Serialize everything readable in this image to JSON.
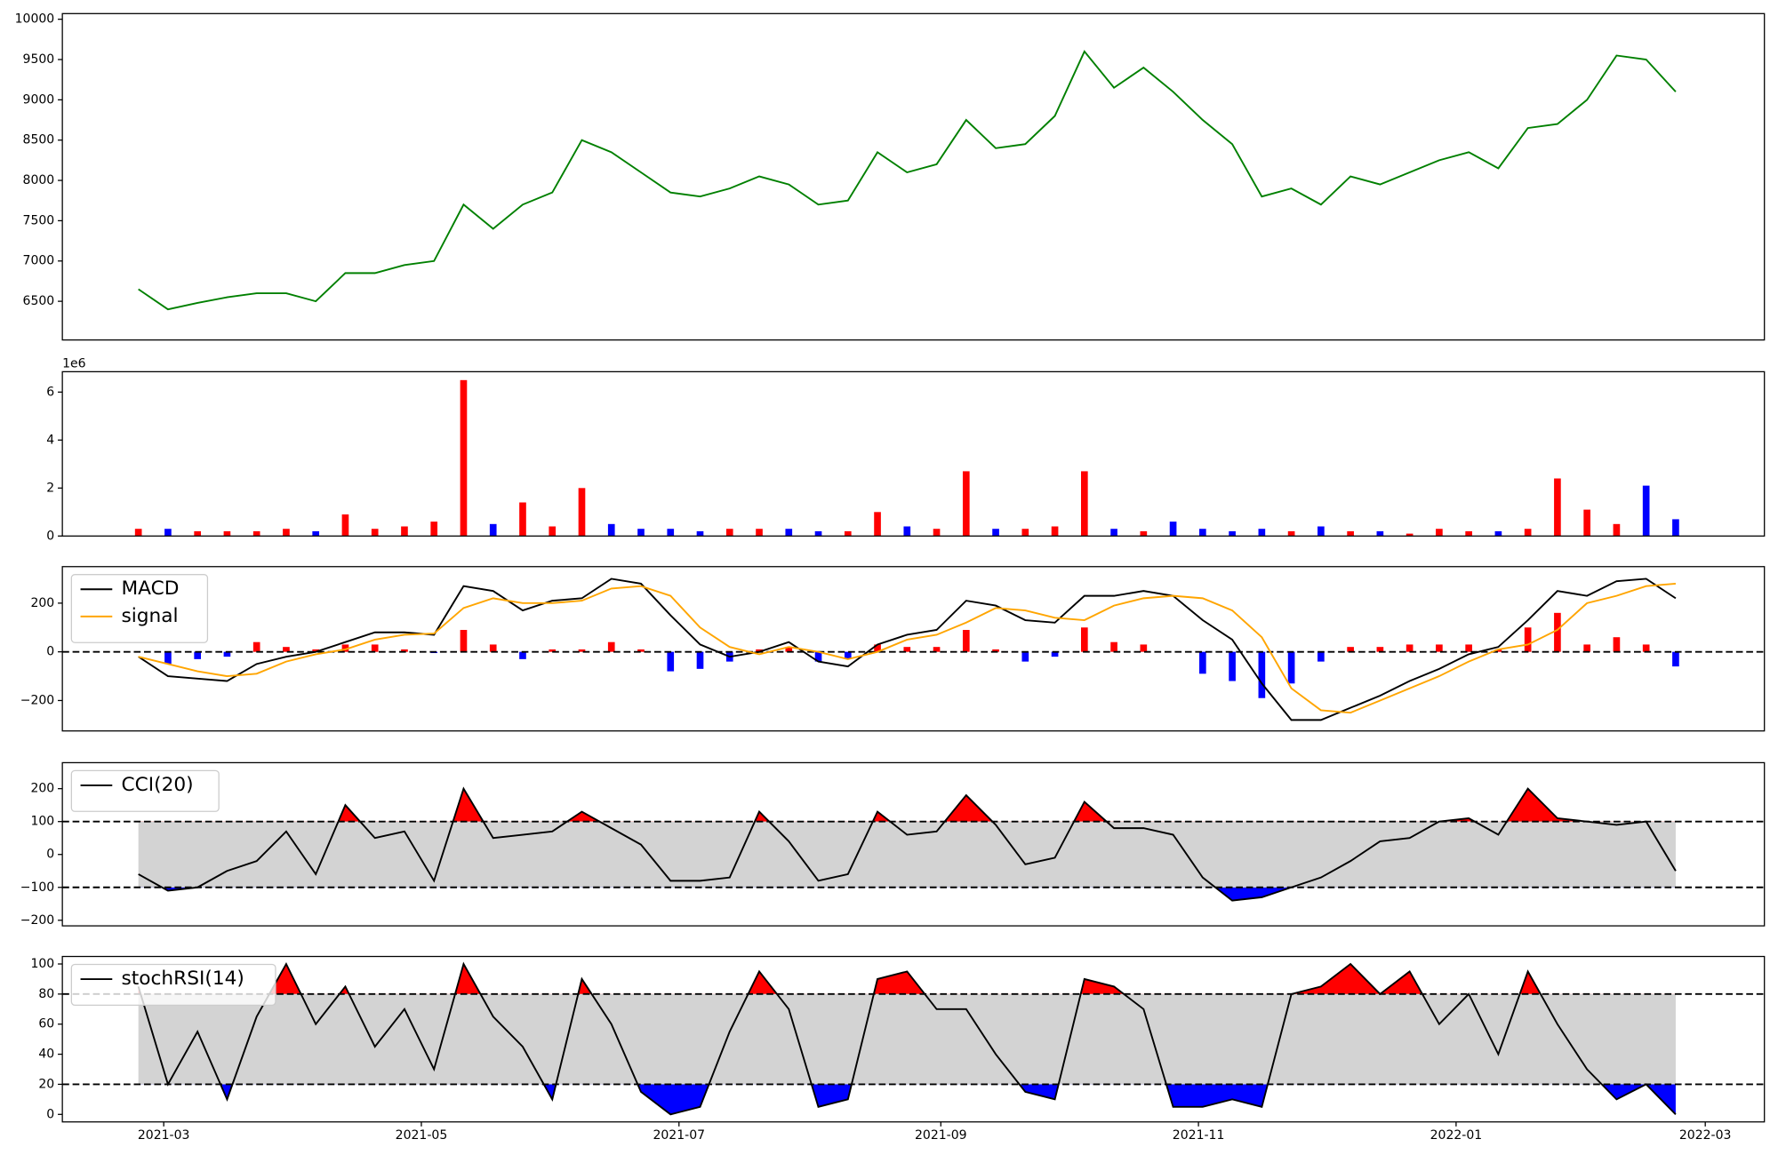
{
  "chart_data": [
    {
      "type": "line",
      "series": [
        {
          "color": "#008000",
          "values": [
            6650,
            6400,
            6480,
            6550,
            6600,
            6600,
            6500,
            6850,
            6850,
            6950,
            7000,
            7700,
            7400,
            7700,
            7850,
            8500,
            8350,
            8100,
            7850,
            7800,
            7900,
            8050,
            7950,
            7700,
            7750,
            8350,
            8100,
            8200,
            8750,
            8400,
            8450,
            8800,
            9600,
            9150,
            9400,
            9100,
            8750,
            8450,
            7800,
            7900,
            7700,
            8050,
            7950,
            8100,
            8250,
            8350,
            8150,
            8650,
            8700,
            9000,
            9550,
            9500,
            9100
          ]
        }
      ],
      "ylim": [
        6020,
        10070
      ],
      "yticks": [
        6500,
        7000,
        7500,
        8000,
        8500,
        9000,
        9500,
        10000
      ]
    },
    {
      "type": "bar",
      "y_offset_label": "1e6",
      "series": [
        {
          "up_color": "#ff0000",
          "down_color": "#0000ff",
          "values": [
            0.3,
            0.3,
            0.2,
            0.2,
            0.2,
            0.3,
            0.2,
            0.9,
            0.3,
            0.4,
            0.6,
            6.5,
            0.5,
            1.4,
            0.4,
            2.0,
            0.5,
            0.3,
            0.3,
            0.2,
            0.3,
            0.3,
            0.3,
            0.2,
            0.2,
            1.0,
            0.4,
            0.3,
            2.7,
            0.3,
            0.3,
            0.4,
            2.7,
            0.3,
            0.2,
            0.6,
            0.3,
            0.2,
            0.3,
            0.2,
            0.4,
            0.2,
            0.2,
            0.1,
            0.3,
            0.2,
            0.2,
            0.3,
            2.4,
            1.1,
            0.5,
            2.1,
            0.7
          ]
        }
      ],
      "ylim": [
        0,
        6.85
      ],
      "yticks": [
        0,
        2,
        4,
        6
      ]
    },
    {
      "type": "line",
      "hlines": [
        0
      ],
      "legend": "upper left",
      "series": [
        {
          "kind": "bar",
          "up_color": "#ff0000",
          "down_color": "#0000ff",
          "values": [
            0,
            -50,
            -30,
            -20,
            40,
            20,
            10,
            30,
            30,
            10,
            -5,
            90,
            30,
            -30,
            10,
            10,
            40,
            10,
            -80,
            -70,
            -40,
            10,
            20,
            -40,
            -30,
            30,
            20,
            20,
            90,
            10,
            -40,
            -20,
            100,
            40,
            30,
            0,
            -90,
            -120,
            -190,
            -130,
            -40,
            20,
            20,
            30,
            30,
            30,
            10,
            100,
            160,
            30,
            60,
            30,
            -60
          ]
        },
        {
          "name": "MACD",
          "color": "#000000",
          "values": [
            -20,
            -100,
            -110,
            -120,
            -50,
            -20,
            0,
            40,
            80,
            80,
            70,
            270,
            250,
            170,
            210,
            220,
            300,
            280,
            150,
            30,
            -20,
            0,
            40,
            -40,
            -60,
            30,
            70,
            90,
            210,
            190,
            130,
            120,
            230,
            230,
            250,
            230,
            130,
            50,
            -130,
            -280,
            -280,
            -230,
            -180,
            -120,
            -70,
            -10,
            20,
            130,
            250,
            230,
            290,
            300,
            220
          ]
        },
        {
          "name": "signal",
          "color": "#ffa500",
          "values": [
            -20,
            -50,
            -80,
            -100,
            -90,
            -40,
            -10,
            10,
            50,
            70,
            75,
            180,
            220,
            200,
            200,
            210,
            260,
            270,
            230,
            100,
            20,
            -10,
            20,
            0,
            -30,
            0,
            50,
            70,
            120,
            180,
            170,
            140,
            130,
            190,
            220,
            230,
            220,
            170,
            60,
            -150,
            -240,
            -250,
            -200,
            -150,
            -100,
            -40,
            10,
            30,
            90,
            200,
            230,
            270,
            280
          ]
        }
      ],
      "ylim": [
        -325,
        350
      ],
      "yticks": [
        {
          "value": -200,
          "label": "−200"
        },
        0,
        200
      ]
    },
    {
      "type": "line",
      "hlines": [
        -100,
        100
      ],
      "band_color": "#d3d3d3",
      "above_color": "#ff0000",
      "below_color": "#0000ff",
      "legend": "upper left",
      "series": [
        {
          "name": "CCI(20)",
          "color": "#000000",
          "values": [
            -60,
            -110,
            -100,
            -50,
            -20,
            70,
            -60,
            150,
            50,
            70,
            -80,
            200,
            50,
            60,
            70,
            130,
            80,
            30,
            -80,
            -80,
            -70,
            130,
            40,
            -80,
            -60,
            130,
            60,
            70,
            180,
            90,
            -30,
            -10,
            160,
            80,
            80,
            60,
            -70,
            -140,
            -130,
            -100,
            -70,
            -20,
            40,
            50,
            100,
            110,
            60,
            200,
            110,
            100,
            90,
            100,
            -50
          ]
        }
      ],
      "ylim": [
        -217,
        279
      ],
      "yticks": [
        {
          "value": -200,
          "label": "−200"
        },
        {
          "value": -100,
          "label": "−100"
        },
        0,
        100,
        200
      ]
    },
    {
      "type": "line",
      "hlines": [
        20,
        80
      ],
      "band_color": "#d3d3d3",
      "above_color": "#ff0000",
      "below_color": "#0000ff",
      "legend": "upper left",
      "x": [
        -6,
        1,
        8,
        15,
        22,
        29,
        36,
        43,
        50,
        57,
        64,
        71,
        78,
        85,
        92,
        99,
        106,
        113,
        120,
        127,
        134,
        141,
        148,
        155,
        162,
        169,
        176,
        183,
        190,
        197,
        204,
        211,
        218,
        225,
        232,
        239,
        246,
        253,
        260,
        267,
        274,
        281,
        288,
        295,
        302,
        309,
        316,
        323,
        330,
        337,
        344,
        351,
        358
      ],
      "xlim": [
        -24,
        379
      ],
      "xticks": [
        {
          "value": 0,
          "label": "2021-03"
        },
        {
          "value": 61,
          "label": "2021-05"
        },
        {
          "value": 122,
          "label": "2021-07"
        },
        {
          "value": 184,
          "label": "2021-09"
        },
        {
          "value": 245,
          "label": "2021-11"
        },
        {
          "value": 306,
          "label": "2022-01"
        },
        {
          "value": 365,
          "label": "2022-03"
        }
      ],
      "series": [
        {
          "name": "stochRSI(14)",
          "color": "#000000",
          "values": [
            85,
            20,
            55,
            10,
            65,
            100,
            60,
            85,
            45,
            70,
            30,
            100,
            65,
            45,
            10,
            90,
            60,
            15,
            0,
            5,
            55,
            95,
            70,
            5,
            10,
            90,
            95,
            70,
            70,
            40,
            15,
            10,
            90,
            85,
            70,
            5,
            5,
            10,
            5,
            80,
            85,
            100,
            80,
            95,
            60,
            80,
            40,
            95,
            60,
            30,
            10,
            20,
            0
          ]
        }
      ],
      "ylim": [
        -5,
        105
      ],
      "yticks": [
        0,
        20,
        40,
        60,
        80,
        100
      ]
    }
  ]
}
